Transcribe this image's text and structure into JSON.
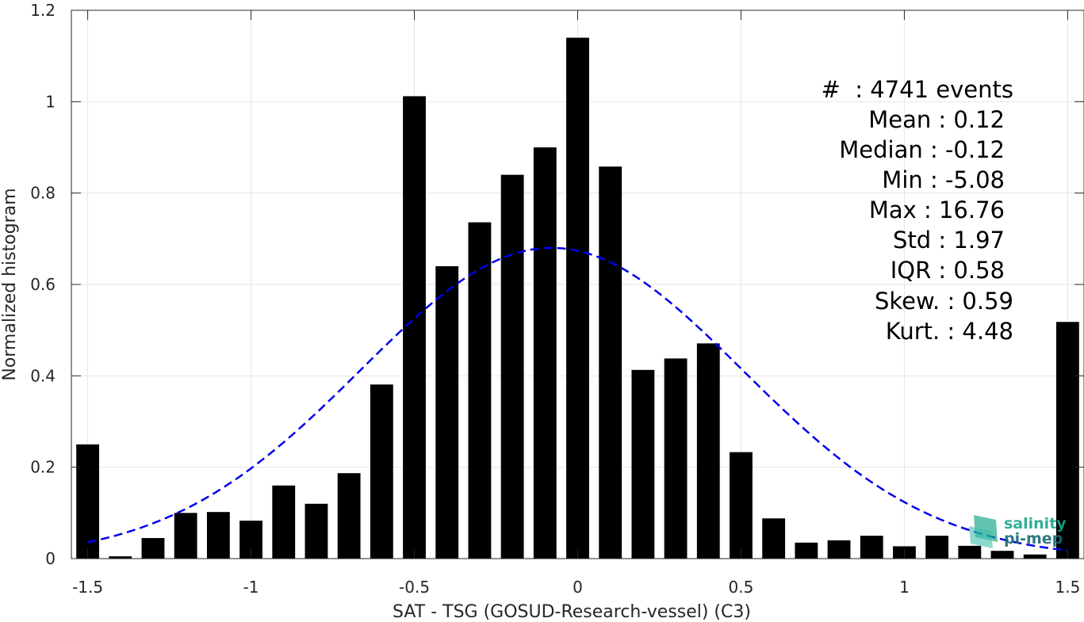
{
  "chart_data": {
    "type": "bar",
    "xlabel": "SAT - TSG (GOSUD-Research-vessel) (C3)",
    "ylabel": "Normalized histogram",
    "xlim": [
      -1.55,
      1.55
    ],
    "ylim": [
      0,
      1.2
    ],
    "grid": true,
    "xticks": [
      -1.5,
      -1,
      -0.5,
      0,
      0.5,
      1,
      1.5
    ],
    "xtick_labels": [
      "-1.5",
      "-1",
      "-0.5",
      "0",
      "0.5",
      "1",
      "1.5"
    ],
    "yticks": [
      0,
      0.2,
      0.4,
      0.6,
      0.8,
      1,
      1.2
    ],
    "ytick_labels": [
      "0",
      "0.2",
      "0.4",
      "0.6",
      "0.8",
      "1",
      "1.2"
    ],
    "bar_width": 0.07,
    "x": [
      -1.5,
      -1.4,
      -1.3,
      -1.2,
      -1.1,
      -1.0,
      -0.9,
      -0.8,
      -0.7,
      -0.6,
      -0.5,
      -0.4,
      -0.3,
      -0.2,
      -0.1,
      0.0,
      0.1,
      0.2,
      0.3,
      0.4,
      0.5,
      0.6,
      0.7,
      0.8,
      0.9,
      1.0,
      1.1,
      1.2,
      1.3,
      1.4,
      1.5
    ],
    "values": [
      0.25,
      0.005,
      0.045,
      0.1,
      0.102,
      0.083,
      0.16,
      0.12,
      0.187,
      0.381,
      1.012,
      0.64,
      0.736,
      0.84,
      0.9,
      1.14,
      0.858,
      0.413,
      0.438,
      0.471,
      0.233,
      0.088,
      0.035,
      0.04,
      0.05,
      0.027,
      0.05,
      0.028,
      0.017,
      0.009,
      0.518
    ],
    "bar_color": "#000000",
    "fit_curve": {
      "style": "dashed",
      "color": "#0000ee",
      "mean": -0.08,
      "std": 0.585,
      "peak": 0.68,
      "x_range": [
        -1.5,
        1.5
      ]
    }
  },
  "stats": {
    "count": "#  : 4741 events",
    "mean": "Mean : 0.12",
    "median": "Median : -0.12",
    "min": "Min : -5.08",
    "max": "Max : 16.76",
    "std": "Std : 1.97",
    "iqr": "IQR : 0.58",
    "skew": "Skew. : 0.59",
    "kurt": "Kurt. : 4.48"
  },
  "logo": {
    "line1": "salinity",
    "line2": "pi-mep",
    "color1": "#1aa88a",
    "color2": "#156b72"
  }
}
